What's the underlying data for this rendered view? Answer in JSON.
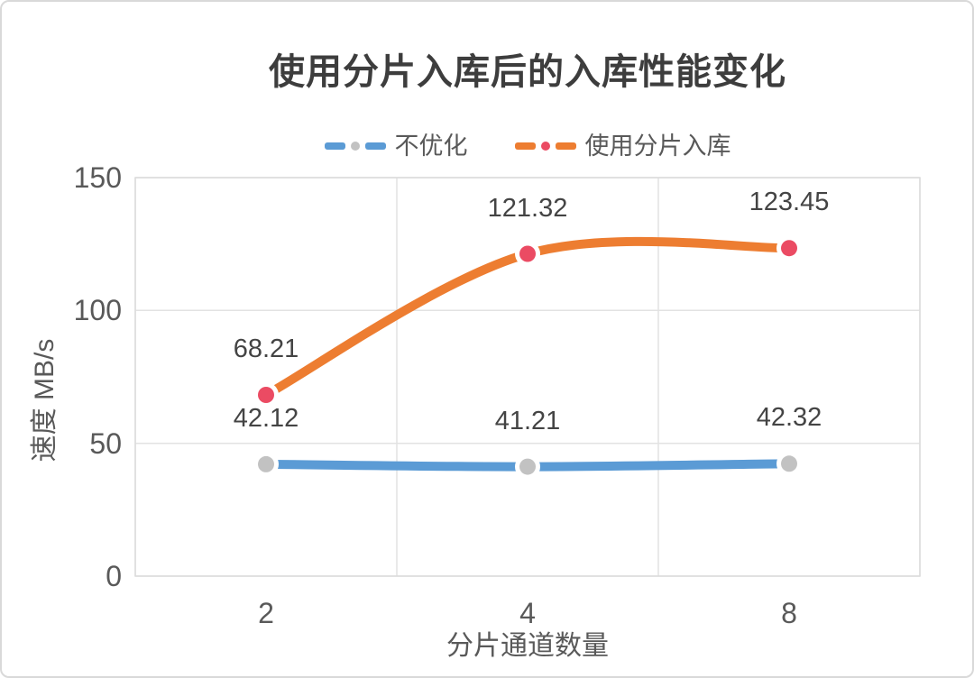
{
  "frame": {
    "border_color": "#d9d9d9",
    "background": "#ffffff"
  },
  "chart_data": {
    "type": "line",
    "title": "使用分片入库后的入库性能变化",
    "categories": [
      "2",
      "4",
      "8"
    ],
    "series": [
      {
        "name": "不优化",
        "values": [
          42.12,
          41.21,
          42.32
        ],
        "labels": [
          "42.12",
          "41.21",
          "42.32"
        ],
        "line_color": "#5b9bd5",
        "marker_color": "#c2c2c2"
      },
      {
        "name": "使用分片入库",
        "values": [
          68.21,
          121.32,
          123.45
        ],
        "labels": [
          "68.21",
          "121.32",
          "123.45"
        ],
        "line_color": "#ed7d31",
        "marker_color": "#eb4b63"
      }
    ],
    "xlabel": "分片通道数量",
    "ylabel": "速度 MB/s",
    "ylim": [
      0,
      150
    ],
    "yticks": [
      0,
      50,
      100,
      150
    ],
    "grid": true,
    "gridline_color": "#e2e2e2",
    "plot_border_color": "#dcdcdc",
    "legend_position": "top",
    "smooth": true,
    "data_labels": true,
    "tick_color": "#595959",
    "data_label_color": "#444444",
    "title_color": "#3d3d3d"
  }
}
